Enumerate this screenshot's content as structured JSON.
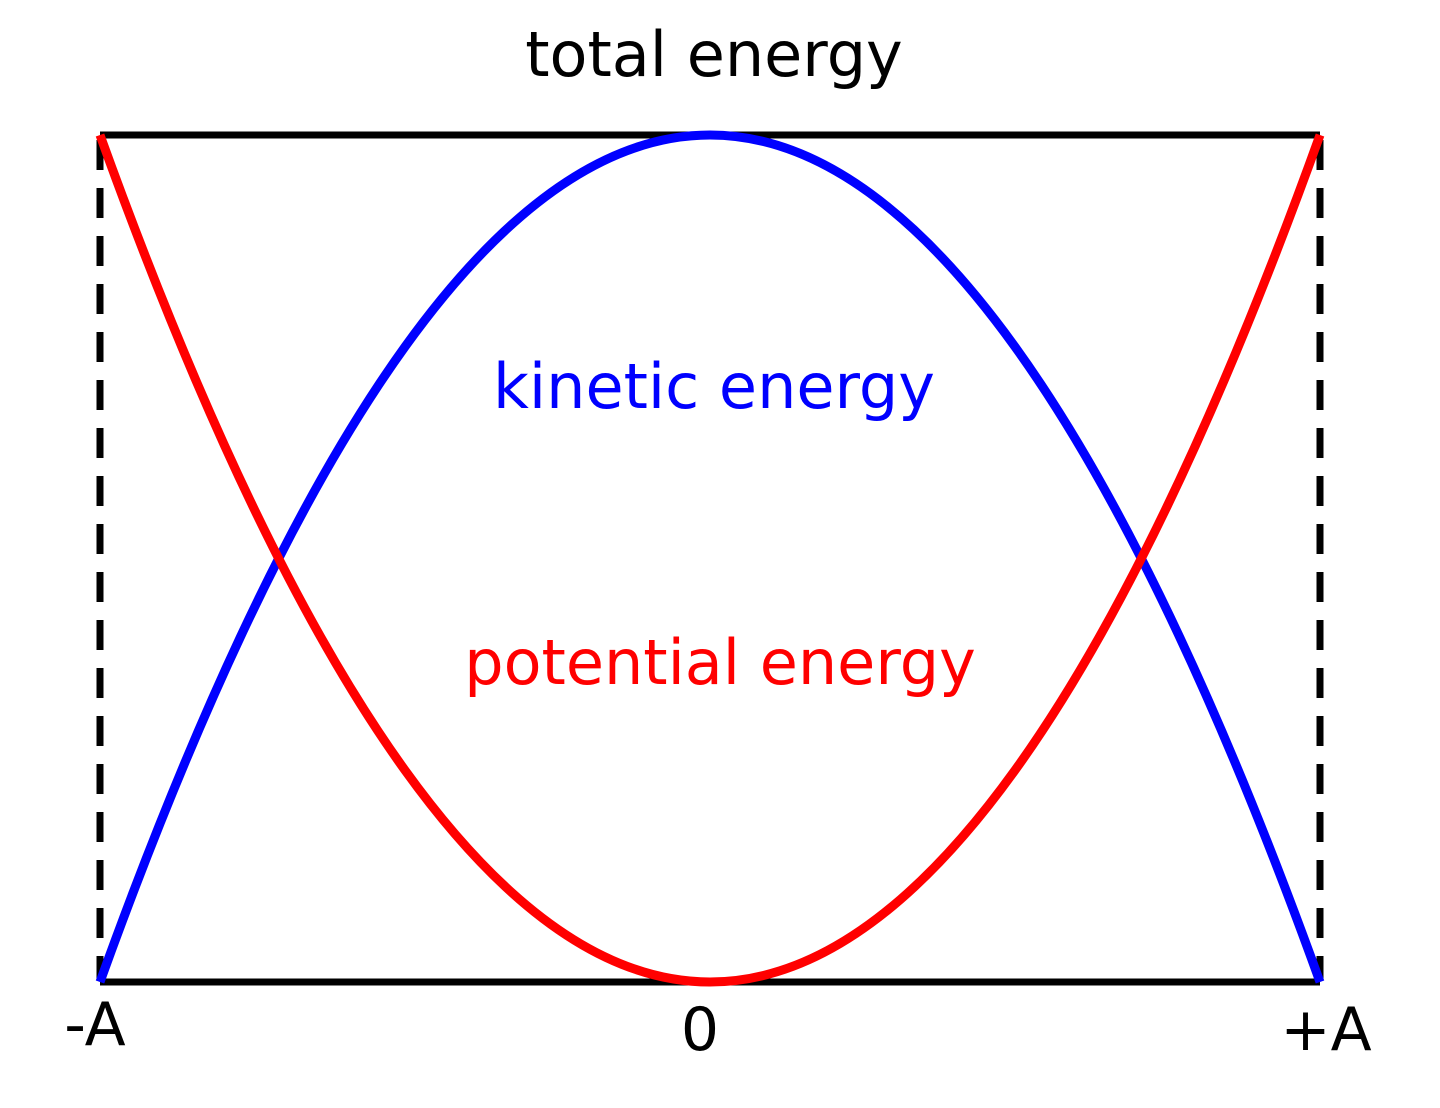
{
  "title": "total energy",
  "curve_labels": {
    "kinetic": "kinetic energy",
    "potential": "potential energy"
  },
  "axis_labels": {
    "left": "-A",
    "center": "0",
    "right": "+A"
  }
}
